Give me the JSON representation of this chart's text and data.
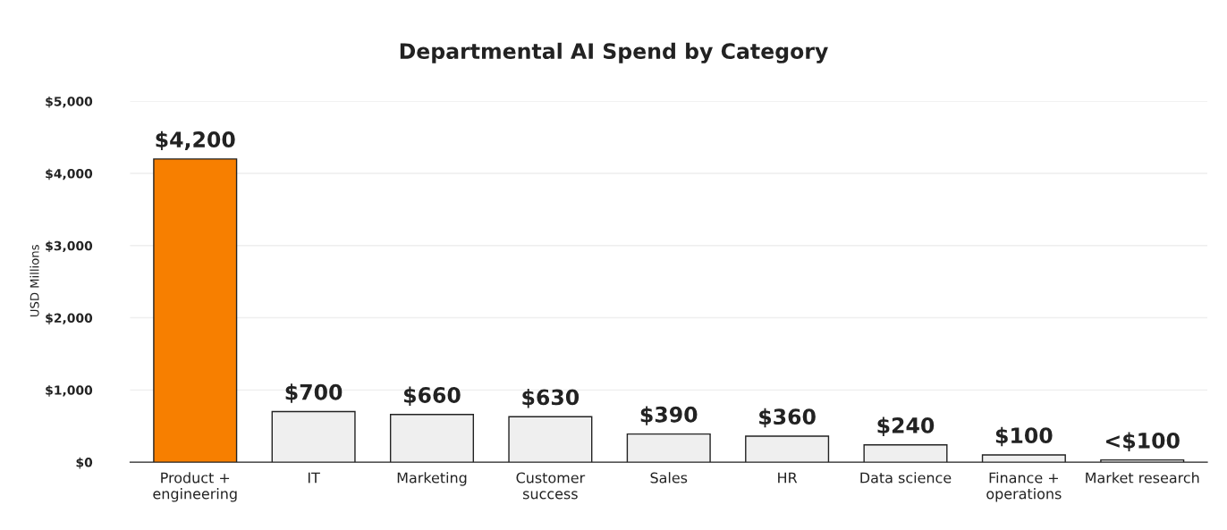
{
  "chart_data": {
    "type": "bar",
    "title": "Departmental AI Spend by Category",
    "ylabel": "USD Millions",
    "categories": [
      "Product +\nengineering",
      "IT",
      "Marketing",
      "Customer\nsuccess",
      "Sales",
      "HR",
      "Data science",
      "Finance +\noperations",
      "Market research"
    ],
    "values": [
      4200,
      700,
      660,
      630,
      390,
      360,
      240,
      100,
      30
    ],
    "colors": [
      "#f77f00",
      "#efefef",
      "#efefef",
      "#efefef",
      "#efefef",
      "#efefef",
      "#efefef",
      "#efefef",
      "#efefef"
    ],
    "value_labels": [
      "$4,200",
      "$700",
      "$660",
      "$630",
      "$390",
      "$360",
      "$240",
      "$100",
      "<$100"
    ],
    "ylim": [
      0,
      5000
    ],
    "yticks": [
      {
        "value": 0,
        "label": "$0"
      },
      {
        "value": 1000,
        "label": "$1,000"
      },
      {
        "value": 2000,
        "label": "$2,000"
      },
      {
        "value": 3000,
        "label": "$3,000"
      },
      {
        "value": 4000,
        "label": "$4,000"
      },
      {
        "value": 5000,
        "label": "$5,000"
      }
    ],
    "grid": "y"
  }
}
